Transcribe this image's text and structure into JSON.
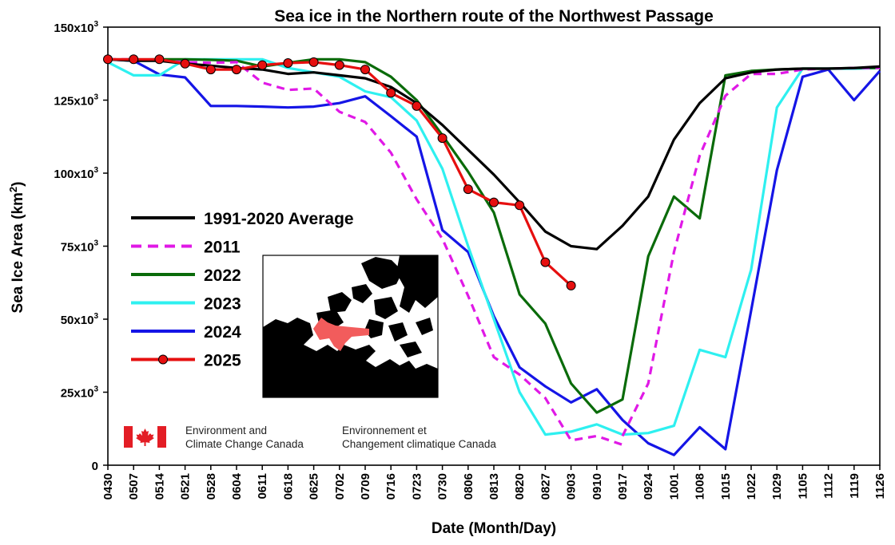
{
  "chart_data": {
    "type": "line",
    "title": "Sea ice in the Northern route of the Northwest Passage",
    "xlabel": "Date (Month/Day)",
    "ylabel": "Sea Ice Area (km",
    "ylabel_sup": "2",
    "ylabel_close": ")",
    "ylim": [
      0,
      150000
    ],
    "y_ticks": [
      {
        "value": 0,
        "base": "0",
        "sup": ""
      },
      {
        "value": 25000,
        "base": "25x10",
        "sup": "3"
      },
      {
        "value": 50000,
        "base": "50x10",
        "sup": "3"
      },
      {
        "value": 75000,
        "base": "75x10",
        "sup": "3"
      },
      {
        "value": 100000,
        "base": "100x10",
        "sup": "3"
      },
      {
        "value": 125000,
        "base": "125x10",
        "sup": "3"
      },
      {
        "value": 150000,
        "base": "150x10",
        "sup": "3"
      }
    ],
    "categories": [
      "0430",
      "0507",
      "0514",
      "0521",
      "0528",
      "0604",
      "0611",
      "0618",
      "0625",
      "0702",
      "0709",
      "0716",
      "0723",
      "0730",
      "0806",
      "0813",
      "0820",
      "0827",
      "0903",
      "0910",
      "0917",
      "0924",
      "1001",
      "1008",
      "1015",
      "1022",
      "1029",
      "1105",
      "1112",
      "1119",
      "1126"
    ],
    "series": [
      {
        "name": "1991-2020 Average",
        "color": "#000000",
        "dash": "",
        "marker": false,
        "values": [
          139000,
          138500,
          138500,
          137500,
          136800,
          136000,
          135500,
          134000,
          134500,
          133500,
          132500,
          129500,
          124000,
          116500,
          108000,
          99500,
          90000,
          80000,
          75000,
          74000,
          82000,
          92000,
          111500,
          124000,
          132500,
          134500,
          135500,
          135800,
          135800,
          136000,
          136500
        ]
      },
      {
        "name": "2011",
        "color": "#e019e6",
        "dash": "10 7",
        "marker": false,
        "values": [
          139000,
          139000,
          138500,
          138000,
          137800,
          138000,
          131000,
          128500,
          129000,
          121000,
          117500,
          107000,
          91000,
          77500,
          58000,
          37000,
          31000,
          23000,
          8500,
          10000,
          7000,
          null,
          null,
          null,
          null,
          null,
          null,
          null,
          null,
          null,
          null
        ],
        "tail_values": [
          null,
          null,
          null,
          null,
          null,
          null,
          null,
          null,
          null,
          null,
          null,
          null,
          null,
          null,
          null,
          null,
          null,
          null,
          null,
          null,
          10000,
          28000,
          73000,
          106000,
          126500,
          134000,
          134000,
          135500,
          135800,
          136000,
          136000
        ]
      },
      {
        "name": "2022",
        "color": "#0a6b0a",
        "dash": "",
        "marker": false,
        "values": [
          139000,
          138800,
          139000,
          139000,
          138800,
          138500,
          136500,
          137800,
          139000,
          139000,
          138000,
          133000,
          125000,
          113000,
          100500,
          86500,
          58500,
          48500,
          28000,
          18000,
          22500,
          71500,
          92000,
          84500,
          133500,
          135000,
          135500,
          135800,
          135800,
          136000,
          136000
        ]
      },
      {
        "name": "2023",
        "color": "#2ef0f0",
        "dash": "",
        "marker": false,
        "values": [
          138000,
          133500,
          133500,
          139000,
          139000,
          139000,
          139000,
          136000,
          134500,
          133000,
          128000,
          126000,
          118000,
          101500,
          75000,
          50000,
          25000,
          10500,
          11500,
          14000,
          10500,
          11000,
          13500,
          39500,
          37000,
          67000,
          122500,
          135800,
          135800,
          135800,
          136000
        ]
      },
      {
        "name": "2024",
        "color": "#1515e6",
        "dash": "",
        "marker": false,
        "values": [
          139000,
          138500,
          133800,
          132800,
          123000,
          123000,
          122800,
          122500,
          122800,
          124000,
          126300,
          119500,
          112500,
          80500,
          73000,
          51000,
          33500,
          27000,
          21500,
          26000,
          15500,
          7500,
          3500,
          13000,
          5500,
          53000,
          101000,
          133000,
          135500,
          125000,
          135000
        ]
      },
      {
        "name": "2025",
        "color": "#e60f0f",
        "dash": "",
        "marker": true,
        "values": [
          139000,
          139000,
          139000,
          137500,
          135500,
          135500,
          137000,
          137700,
          138000,
          137000,
          135500,
          127500,
          123000,
          112000,
          94500,
          90000,
          89000,
          69500,
          61500,
          null,
          null,
          null,
          null,
          null,
          null,
          null,
          null,
          null,
          null,
          null,
          null
        ]
      }
    ],
    "legend_position": "center-left",
    "grid": false
  },
  "branding": {
    "line1_en": "Environment and",
    "line2_en": "Climate Change Canada",
    "line1_fr": "Environnement et",
    "line2_fr": "Changement climatique Canada",
    "flag_red": "#e31d25"
  },
  "inset_map": {
    "route_color": "#f25c5c"
  }
}
